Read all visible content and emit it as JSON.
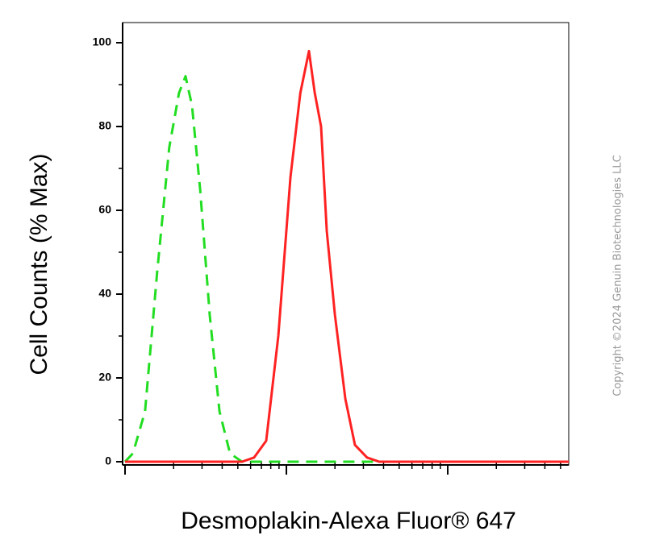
{
  "chart_data": {
    "type": "line",
    "y_label": "Cell Counts (% Max)",
    "x_label": "Desmoplakin-Alexa Fluor® 647",
    "copyright": "Copyright ©2024 Genuin Biotechnologies LLC",
    "xscale": "log",
    "xlim": [
      1,
      562
    ],
    "xticks": [
      1,
      10,
      100
    ],
    "ylim": [
      0,
      100
    ],
    "yticks": [
      0,
      20,
      40,
      60,
      80,
      100
    ],
    "series": [
      {
        "color": "#22dd22",
        "dash": true,
        "x": [
          1,
          1.12,
          1.33,
          1.58,
          1.88,
          2.16,
          2.37,
          2.6,
          2.92,
          3.35,
          3.85,
          4.47,
          5.31,
          10,
          100,
          562
        ],
        "values": [
          0,
          2,
          12,
          45,
          75,
          88,
          92,
          85,
          65,
          35,
          12,
          2,
          0,
          0,
          0,
          0
        ]
      },
      {
        "color": "#ff2222",
        "dash": false,
        "x": [
          1,
          5.31,
          6.31,
          7.5,
          8.91,
          10.6,
          12.2,
          13.8,
          15,
          16.4,
          17.8,
          20,
          23.2,
          26.6,
          31.6,
          37.6,
          562
        ],
        "values": [
          0,
          0,
          1,
          5,
          30,
          68,
          88,
          98,
          88,
          80,
          55,
          35,
          15,
          4,
          1,
          0,
          0
        ]
      }
    ]
  }
}
